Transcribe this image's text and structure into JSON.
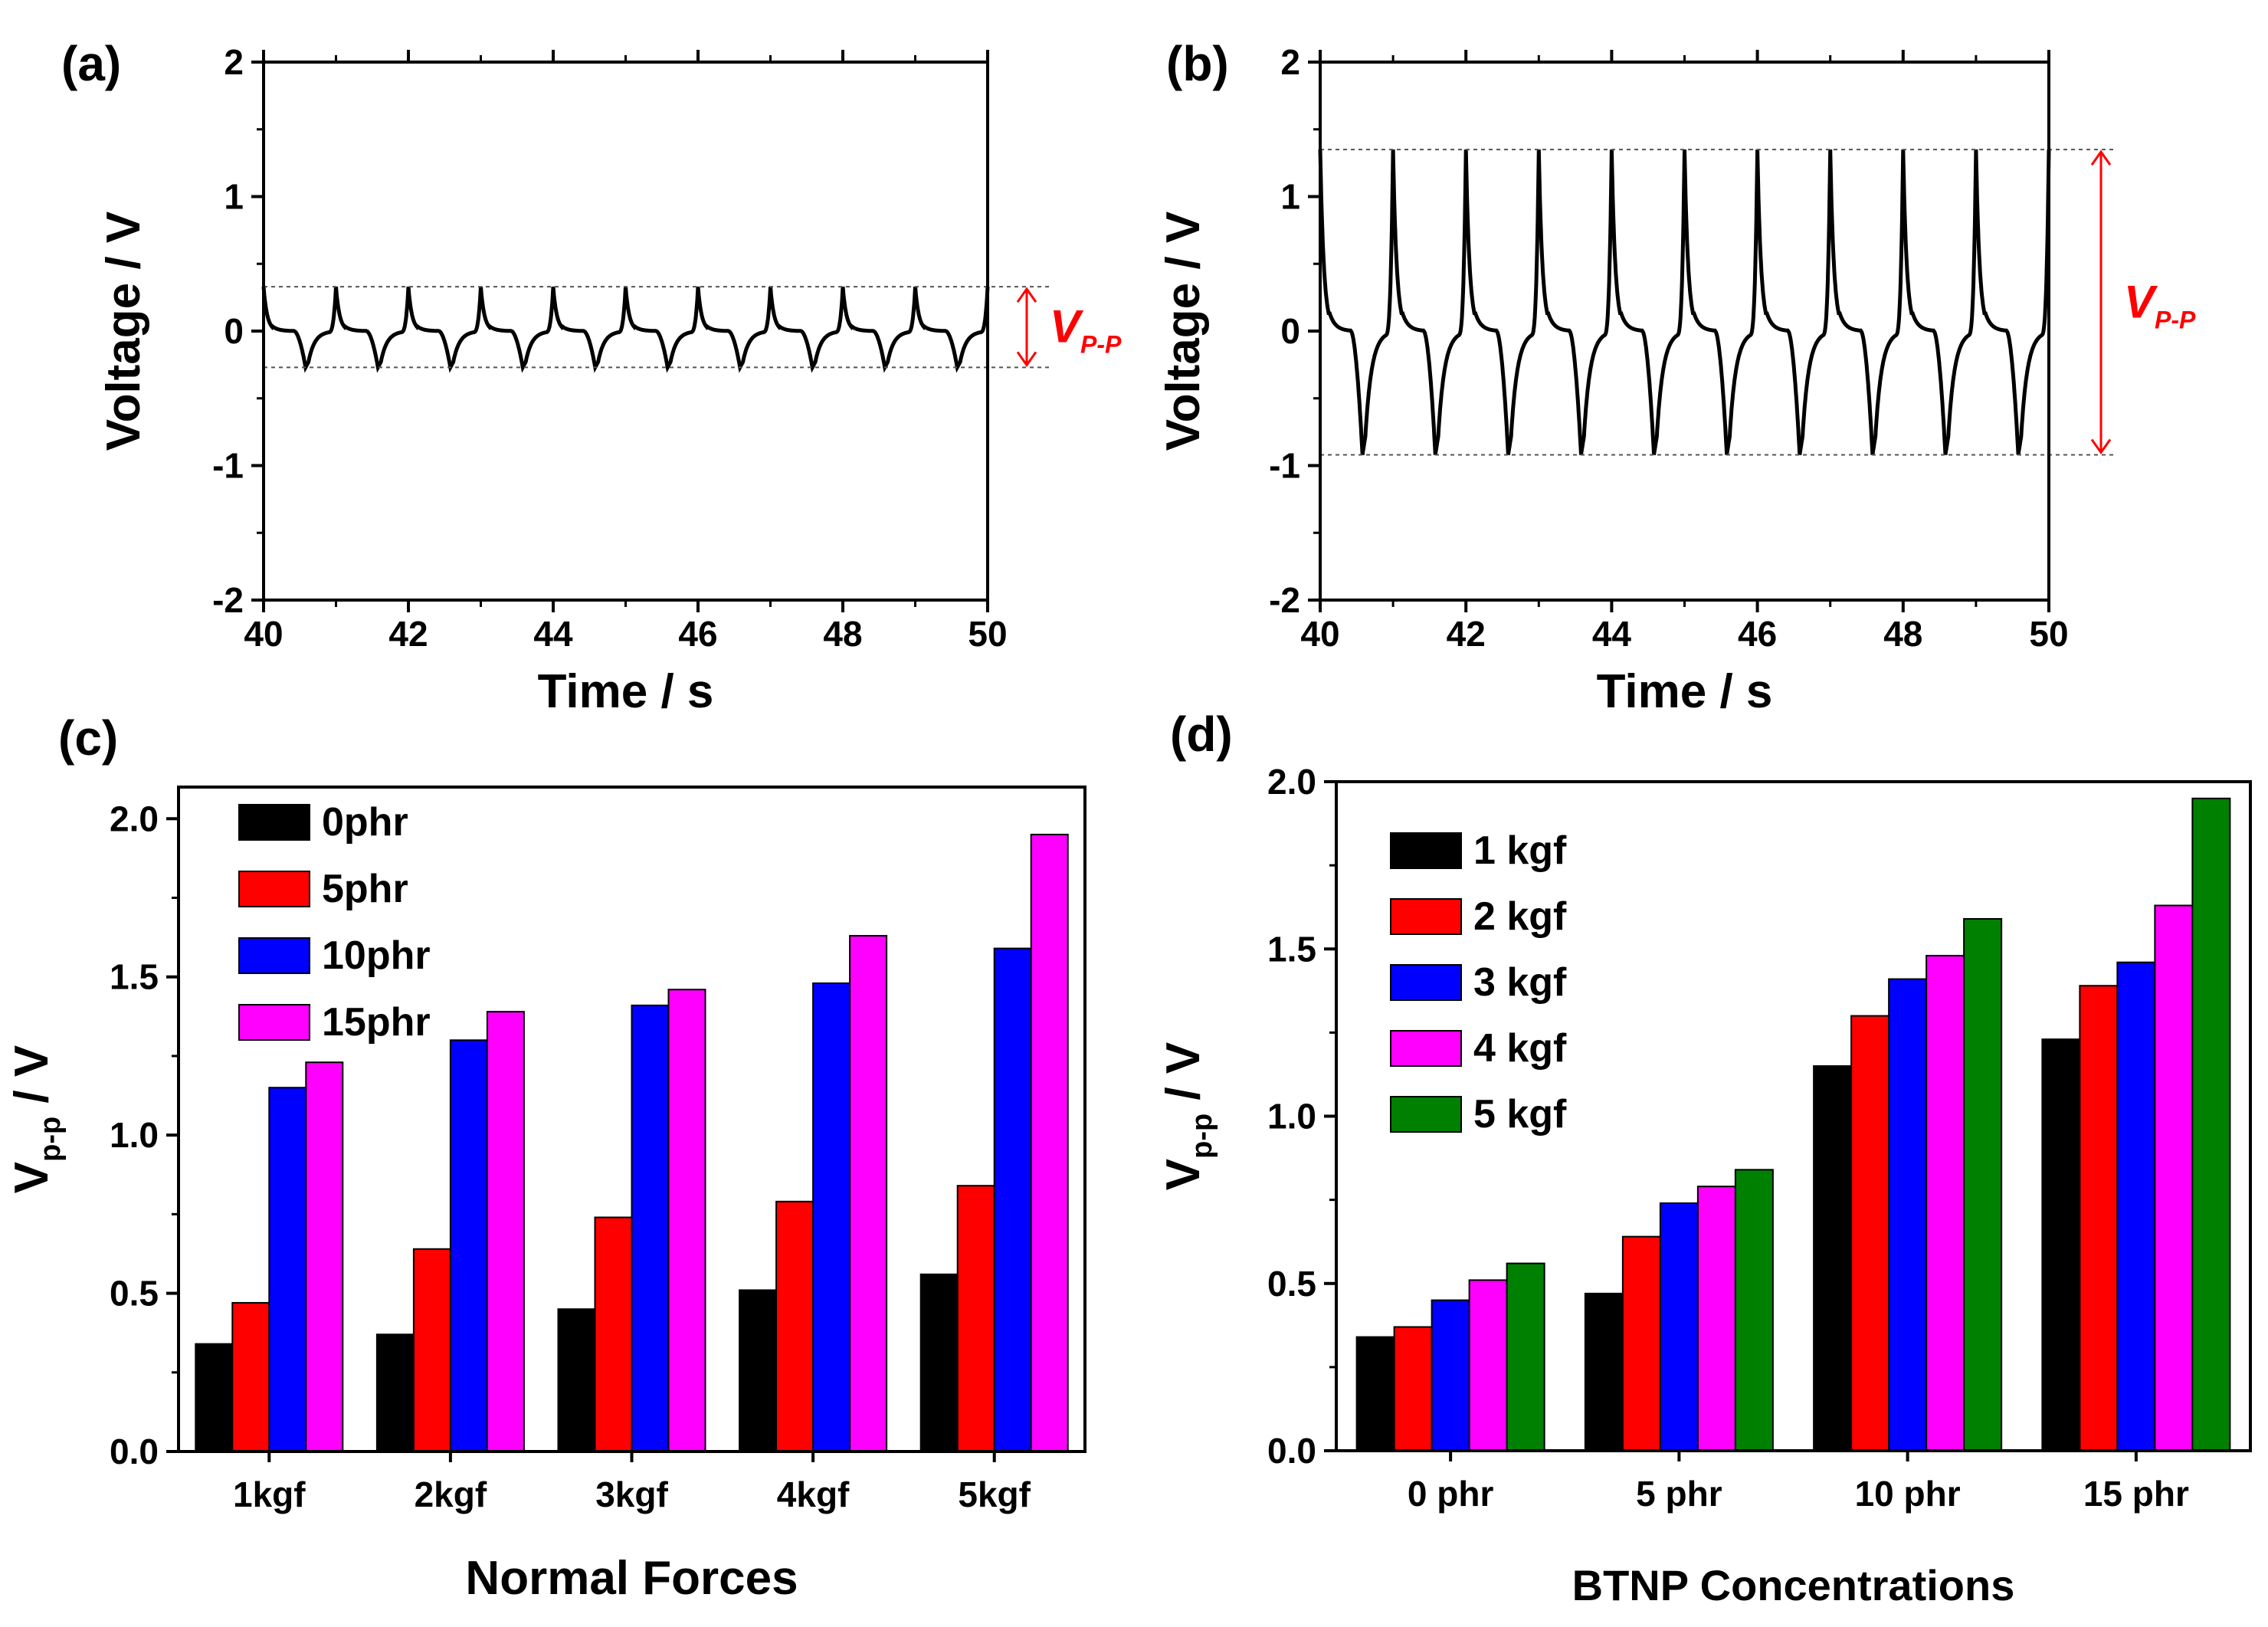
{
  "chart_data": [
    {
      "panel": "(a)",
      "type": "line",
      "xlabel": "Time / s",
      "ylabel": "Voltage / V",
      "xlim": [
        40,
        50
      ],
      "ylim": [
        -2,
        2
      ],
      "xticks": [
        "40",
        "42",
        "44",
        "46",
        "48",
        "50"
      ],
      "yticks": [
        "-2",
        "-1",
        "0",
        "1",
        "2"
      ],
      "series": [
        {
          "name": "voltage",
          "period_s": 1.0,
          "start_s": 40,
          "v_max": 0.33,
          "v_min": -0.27
        }
      ],
      "annotation": {
        "main": "V",
        "sub": "P-P",
        "upper": 0.33,
        "lower": -0.27
      }
    },
    {
      "panel": "(b)",
      "type": "line",
      "xlabel": "Time / s",
      "ylabel": "Voltage / V",
      "xlim": [
        40,
        50
      ],
      "ylim": [
        -2,
        2
      ],
      "xticks": [
        "40",
        "42",
        "44",
        "46",
        "48",
        "50"
      ],
      "yticks": [
        "-2",
        "-1",
        "0",
        "1",
        "2"
      ],
      "series": [
        {
          "name": "voltage",
          "period_s": 1.0,
          "start_s": 40,
          "v_max": 1.35,
          "v_min": -0.92
        }
      ],
      "annotation": {
        "main": "V",
        "sub": "P-P",
        "upper": 1.35,
        "lower": -0.92
      }
    },
    {
      "panel": "(c)",
      "type": "bar",
      "xlabel": "Normal Forces",
      "ylabel_main": "V",
      "ylabel_sub": "p-p",
      "ylabel_unit": " / V",
      "ylim": [
        0,
        2.1
      ],
      "yticks": [
        "0.0",
        "0.5",
        "1.0",
        "1.5",
        "2.0"
      ],
      "categories": [
        "1kgf",
        "2kgf",
        "3kgf",
        "4kgf",
        "5kgf"
      ],
      "series": [
        {
          "name": "0phr",
          "color": "#000000",
          "values": [
            0.34,
            0.37,
            0.45,
            0.51,
            0.56
          ]
        },
        {
          "name": "5phr",
          "color": "#ff0000",
          "values": [
            0.47,
            0.64,
            0.74,
            0.79,
            0.84
          ]
        },
        {
          "name": "10phr",
          "color": "#0000ff",
          "values": [
            1.15,
            1.3,
            1.41,
            1.48,
            1.59
          ]
        },
        {
          "name": "15phr",
          "color": "#ff00ff",
          "values": [
            1.23,
            1.39,
            1.46,
            1.63,
            1.95
          ]
        }
      ],
      "legend": "top-left"
    },
    {
      "panel": "(d)",
      "type": "bar",
      "xlabel": "BTNP Concentrations",
      "ylabel_main": "V",
      "ylabel_sub": "p-p",
      "ylabel_unit": " / V",
      "ylim": [
        0,
        2.0
      ],
      "yticks": [
        "0.0",
        "0.5",
        "1.0",
        "1.5",
        "2.0"
      ],
      "categories": [
        "0 phr",
        "5 phr",
        "10 phr",
        "15 phr"
      ],
      "series": [
        {
          "name": "1 kgf",
          "color": "#000000",
          "values": [
            0.34,
            0.47,
            1.15,
            1.23
          ]
        },
        {
          "name": "2 kgf",
          "color": "#ff0000",
          "values": [
            0.37,
            0.64,
            1.3,
            1.39
          ]
        },
        {
          "name": "3 kgf",
          "color": "#0000ff",
          "values": [
            0.45,
            0.74,
            1.41,
            1.46
          ]
        },
        {
          "name": "4 kgf",
          "color": "#ff00ff",
          "values": [
            0.51,
            0.79,
            1.48,
            1.63
          ]
        },
        {
          "name": "5 kgf",
          "color": "#008000",
          "values": [
            0.56,
            0.84,
            1.59,
            1.95
          ]
        }
      ],
      "legend": "top-left"
    }
  ]
}
